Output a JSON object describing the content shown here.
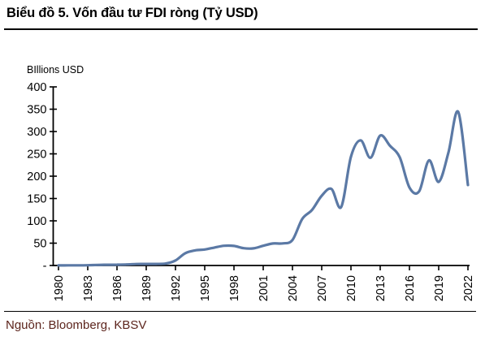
{
  "header": {
    "title": "Biểu đồ 5. Vốn đầu tư FDI ròng (Tỷ USD)"
  },
  "footer": {
    "source": "Nguồn: Bloomberg, KBSV"
  },
  "colors": {
    "line": "#5b79a5",
    "axis": "#000000",
    "source_text": "#5c241c",
    "background": "#ffffff"
  },
  "chart_data": {
    "type": "line",
    "title": "Biểu đồ 5. Vốn đầu tư FDI ròng (Tỷ USD)",
    "ylabel": "BIllions USD",
    "xlabel": "",
    "grid": false,
    "legend": "none",
    "smoothed": true,
    "line_color": "#5b79a5",
    "ylim": [
      0,
      400
    ],
    "y_ticks": [
      0,
      50,
      100,
      150,
      200,
      250,
      300,
      350,
      400
    ],
    "y_tick_labels": [
      "-",
      "50",
      "100",
      "150",
      "200",
      "250",
      "300",
      "350",
      "400"
    ],
    "x_tick_labels": [
      "1980",
      "1983",
      "1986",
      "1989",
      "1992",
      "1995",
      "1998",
      "2001",
      "2004",
      "2007",
      "2010",
      "2013",
      "2016",
      "2019",
      "2022"
    ],
    "x": [
      1980,
      1981,
      1982,
      1983,
      1984,
      1985,
      1986,
      1987,
      1988,
      1989,
      1990,
      1991,
      1992,
      1993,
      1994,
      1995,
      1996,
      1997,
      1998,
      1999,
      2000,
      2001,
      2002,
      2003,
      2004,
      2005,
      2006,
      2007,
      2008,
      2009,
      2010,
      2011,
      2012,
      2013,
      2014,
      2015,
      2016,
      2017,
      2018,
      2019,
      2020,
      2021,
      2022
    ],
    "values": [
      0.1,
      0.3,
      0.4,
      0.6,
      1.3,
      1.7,
      1.9,
      2.3,
      3.2,
      3.4,
      3.5,
      4.4,
      11.2,
      27.5,
      33.8,
      35.8,
      40.2,
      44.2,
      43.8,
      38.8,
      38.4,
      44.2,
      49.3,
      49.5,
      57.0,
      104.1,
      124.1,
      156.2,
      171.5,
      131.1,
      243.7,
      280.1,
      241.2,
      290.9,
      268.1,
      242.5,
      174.8,
      166.1,
      235.4,
      187.2,
      253.1,
      344.1,
      180.2
    ]
  }
}
